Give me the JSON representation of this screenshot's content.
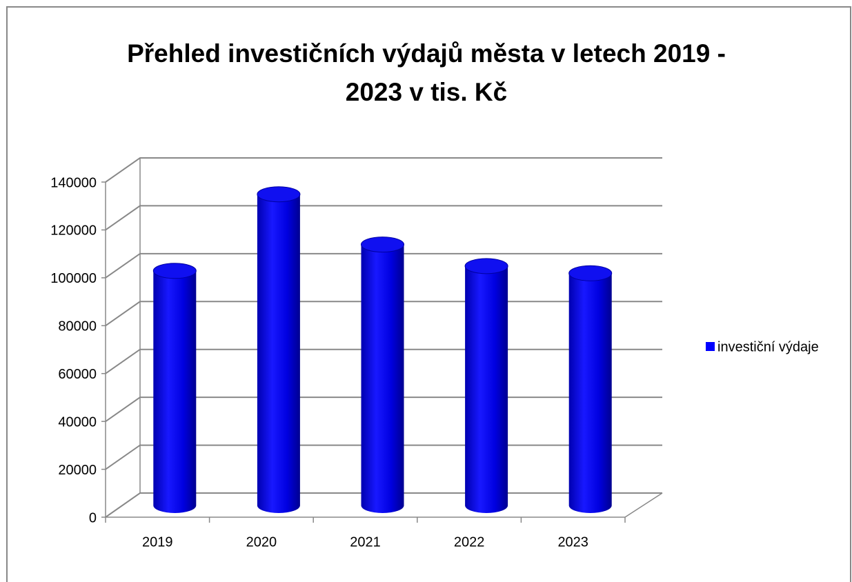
{
  "chart_data": {
    "type": "bar3d",
    "title": "Přehled investičních výdajů města v letech 2019 - 2023 v tis. Kč",
    "categories": [
      "2019",
      "2020",
      "2021",
      "2022",
      "2023"
    ],
    "series": [
      {
        "name": "investiční výdaje",
        "color": "#0000ff",
        "values": [
          98000,
          130000,
          109000,
          100000,
          97000
        ]
      }
    ],
    "ylim": [
      0,
      140000
    ],
    "yticks": [
      0,
      20000,
      40000,
      60000,
      80000,
      100000,
      120000,
      140000
    ],
    "grid": true,
    "legend": "right"
  }
}
